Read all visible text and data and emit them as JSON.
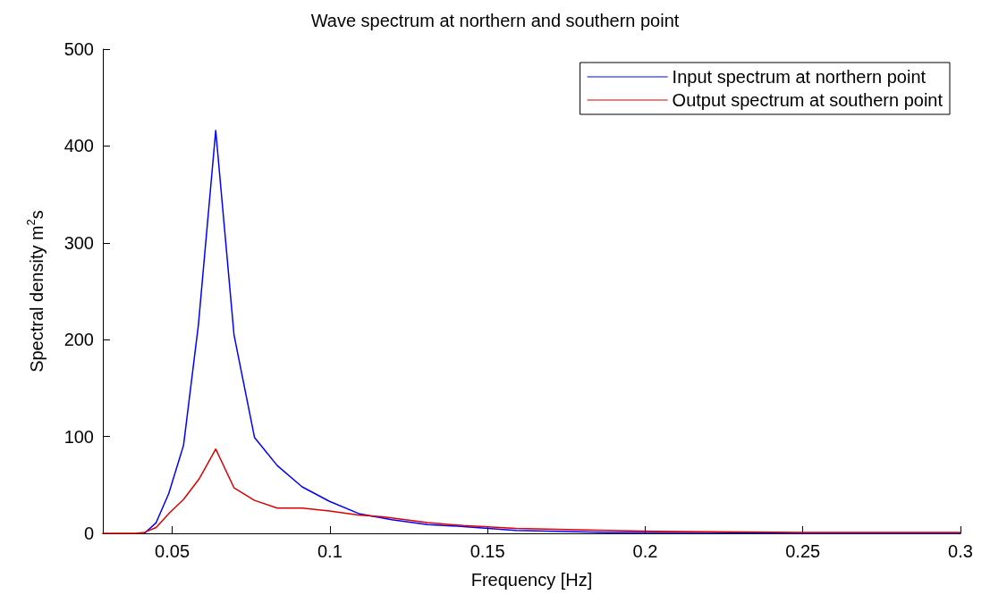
{
  "chart_data": {
    "type": "line",
    "title": "Wave spectrum at northern and southern point",
    "xlabel": "Frequency [Hz]",
    "ylabel": "Spectral density m$^{2}$s",
    "xlim": [
      0.028,
      0.3
    ],
    "xticks": [
      0.05,
      0.1,
      0.15,
      0.2,
      0.25,
      0.3
    ],
    "ylim": [
      0,
      500
    ],
    "yticks": [
      0,
      100,
      200,
      300,
      400,
      500
    ],
    "grid": false,
    "legend": "top right",
    "marker": "none",
    "line_style": "solid",
    "series": [
      {
        "name": "Input spectrum at northern point",
        "color": "#0000ff",
        "x": [
          0.0412,
          0.0449,
          0.0489,
          0.0536,
          0.0583,
          0.0638,
          0.0696,
          0.0761,
          0.0833,
          0.0912,
          0.0999,
          0.1095,
          0.1196,
          0.131,
          0.1424,
          0.159,
          0.188,
          0.22,
          0.25,
          0.3
        ],
        "values": [
          0,
          11,
          41,
          91,
          215,
          416,
          205,
          99,
          70,
          48,
          33,
          20,
          14,
          9,
          7,
          3,
          1,
          1,
          0,
          0
        ]
      },
      {
        "name": "Output spectrum at southern point",
        "color": "#dd0000",
        "x": [
          0.028,
          0.0385,
          0.0412,
          0.0449,
          0.0491,
          0.0536,
          0.0585,
          0.0638,
          0.0696,
          0.0761,
          0.0833,
          0.0912,
          0.0999,
          0.109,
          0.1168,
          0.131,
          0.1424,
          0.159,
          0.188,
          0.203,
          0.25,
          0.3
        ],
        "values": [
          0,
          0,
          1,
          6,
          21,
          35,
          56,
          87,
          47,
          34,
          26,
          26,
          23,
          19,
          17,
          11,
          8,
          5,
          3,
          2,
          1,
          1
        ]
      }
    ]
  }
}
